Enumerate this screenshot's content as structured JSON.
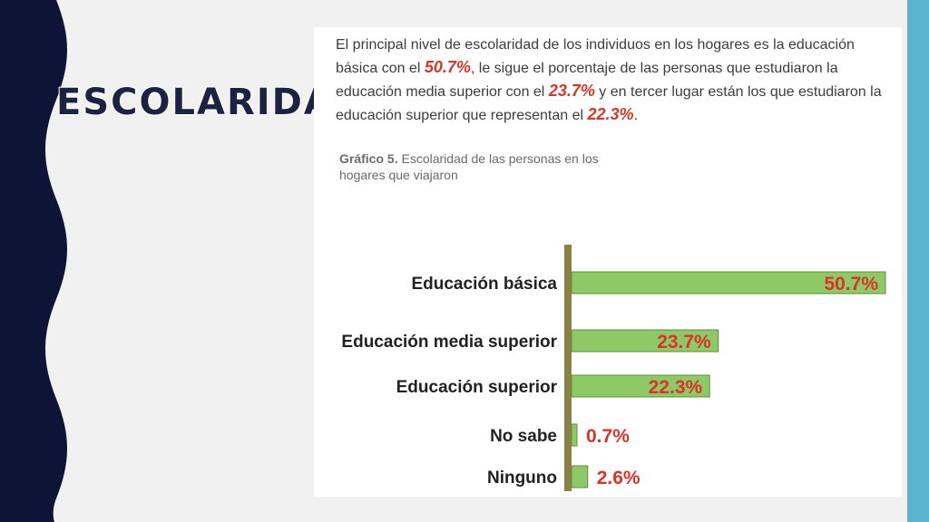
{
  "slide": {
    "title": "ESCOLARIDAD"
  },
  "colors": {
    "dark": "#1c2340",
    "accent": "#5ab4cf",
    "bar": "#8fc866",
    "value": "#d8352a",
    "axis": "#8b8047"
  },
  "text": {
    "p1": "El principal nivel de escolaridad de los individuos en los hogares es la educación básica con el ",
    "v1": "50.7%",
    "p2": ", le sigue el porcentaje de las personas que estudiaron la educación media superior con el ",
    "v2": "23.7%",
    "p3": " y en tercer lugar están los que estudiaron la educación superior que representan el ",
    "v3": "22.3%",
    "p4": "."
  },
  "caption": {
    "label": "Gráfico 5.",
    "text": " Escolaridad de las personas en los hogares que viajaron"
  },
  "chart_data": {
    "type": "bar",
    "orientation": "horizontal",
    "categories": [
      "Educación básica",
      "Educación media superior",
      "Educación superior",
      "No sabe",
      "Ninguno"
    ],
    "values": [
      50.7,
      23.7,
      22.3,
      0.7,
      2.6
    ],
    "value_labels": [
      "50.7%",
      "23.7%",
      "22.3%",
      "0.7%",
      "2.6%"
    ],
    "xlim": [
      0,
      50.7
    ],
    "grid": false
  }
}
